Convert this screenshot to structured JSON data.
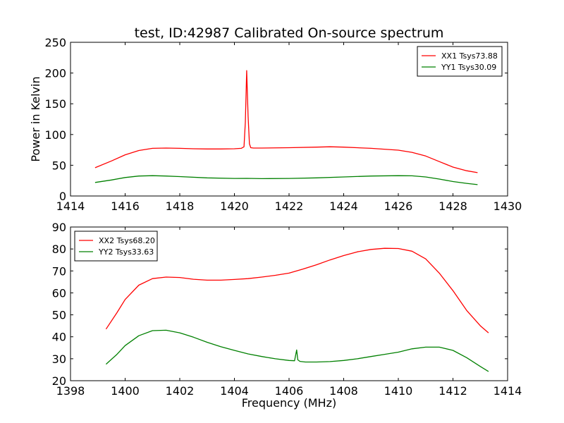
{
  "figure_title": "test, ID:42987 Calibrated On-source spectrum",
  "chart_data": [
    {
      "type": "line",
      "title": "test, ID:42987 Calibrated On-source spectrum",
      "xlabel": "",
      "ylabel": "Power in Kelvin",
      "xlim": [
        1414,
        1430
      ],
      "ylim": [
        0,
        250
      ],
      "xticks": [
        "1414",
        "1416",
        "1418",
        "1420",
        "1422",
        "1424",
        "1426",
        "1428",
        "1430"
      ],
      "yticks": [
        "0",
        "50",
        "100",
        "150",
        "200",
        "250"
      ],
      "legend_position": "top-right",
      "grid": false,
      "series": [
        {
          "name": "XX1 Tsys73.88",
          "color": "#ff0000",
          "x": [
            1414.9,
            1415.5,
            1416.0,
            1416.5,
            1417.0,
            1417.5,
            1418.0,
            1418.5,
            1419.0,
            1419.5,
            1420.0,
            1420.25,
            1420.35,
            1420.4,
            1420.45,
            1420.5,
            1420.55,
            1420.6,
            1420.7,
            1421.0,
            1422.0,
            1423.0,
            1423.5,
            1424.0,
            1425.0,
            1426.0,
            1426.5,
            1427.0,
            1427.5,
            1428.0,
            1428.5,
            1428.9
          ],
          "values": [
            46,
            57,
            67,
            74,
            77.5,
            78,
            77.5,
            76.8,
            76.5,
            76.5,
            76.8,
            77.5,
            80,
            120,
            204,
            130,
            85,
            78.5,
            78,
            78,
            78.5,
            79.5,
            80,
            79.5,
            77.5,
            74.5,
            71,
            65,
            56,
            47,
            41,
            38
          ]
        },
        {
          "name": "YY1 Tsys30.09",
          "color": "#008000",
          "x": [
            1414.9,
            1415.5,
            1416.0,
            1416.5,
            1417.0,
            1417.5,
            1418.0,
            1419.0,
            1420.0,
            1420.45,
            1421.0,
            1422.0,
            1423.0,
            1424.0,
            1425.0,
            1426.0,
            1426.5,
            1427.0,
            1427.5,
            1428.0,
            1428.5,
            1428.9
          ],
          "values": [
            22,
            26,
            30,
            32.5,
            33,
            32.5,
            31.5,
            29.5,
            28.5,
            28.7,
            28.2,
            28.5,
            29.5,
            31,
            32.5,
            33,
            32.8,
            31,
            27.5,
            23.5,
            20.5,
            18.5
          ]
        }
      ]
    },
    {
      "type": "line",
      "title": "",
      "xlabel": "Frequency (MHz)",
      "ylabel": "",
      "xlim": [
        1398,
        1414
      ],
      "ylim": [
        20,
        90
      ],
      "xticks": [
        "1398",
        "1400",
        "1402",
        "1404",
        "1406",
        "1408",
        "1410",
        "1412",
        "1414"
      ],
      "yticks": [
        "20",
        "30",
        "40",
        "50",
        "60",
        "70",
        "80",
        "90"
      ],
      "legend_position": "top-left",
      "grid": false,
      "series": [
        {
          "name": "XX2 Tsys68.20",
          "color": "#ff0000",
          "x": [
            1399.3,
            1399.7,
            1400.0,
            1400.5,
            1401.0,
            1401.5,
            1402.0,
            1402.5,
            1403.0,
            1403.5,
            1404.0,
            1404.5,
            1405.0,
            1405.5,
            1406.0,
            1406.5,
            1407.0,
            1407.5,
            1408.0,
            1408.5,
            1409.0,
            1409.5,
            1410.0,
            1410.5,
            1411.0,
            1411.5,
            1412.0,
            1412.5,
            1413.0,
            1413.3
          ],
          "values": [
            43.5,
            51,
            57,
            63.5,
            66.5,
            67.2,
            67,
            66.2,
            65.8,
            65.8,
            66.1,
            66.5,
            67.2,
            68,
            69,
            70.8,
            72.8,
            75,
            77,
            78.7,
            79.8,
            80.3,
            80.2,
            79,
            75.5,
            69,
            61,
            52,
            45,
            41.8
          ]
        },
        {
          "name": "YY2 Tsys33.63",
          "color": "#008000",
          "x": [
            1399.3,
            1399.7,
            1400.0,
            1400.5,
            1401.0,
            1401.5,
            1402.0,
            1402.5,
            1403.0,
            1403.5,
            1404.0,
            1404.5,
            1405.0,
            1405.5,
            1406.0,
            1406.2,
            1406.28,
            1406.32,
            1406.4,
            1406.6,
            1407.0,
            1407.5,
            1408.0,
            1408.5,
            1409.0,
            1409.5,
            1410.0,
            1410.5,
            1411.0,
            1411.5,
            1412.0,
            1412.5,
            1413.0,
            1413.3
          ],
          "values": [
            27.5,
            32,
            36,
            40.5,
            42.8,
            43,
            41.8,
            39.8,
            37.5,
            35.5,
            33.8,
            32.2,
            31,
            30,
            29.2,
            29.1,
            34,
            29.5,
            28.8,
            28.5,
            28.5,
            28.7,
            29.2,
            30,
            31,
            32,
            33,
            34.5,
            35.3,
            35.3,
            33.8,
            30.5,
            26.5,
            24.2
          ]
        }
      ]
    }
  ]
}
